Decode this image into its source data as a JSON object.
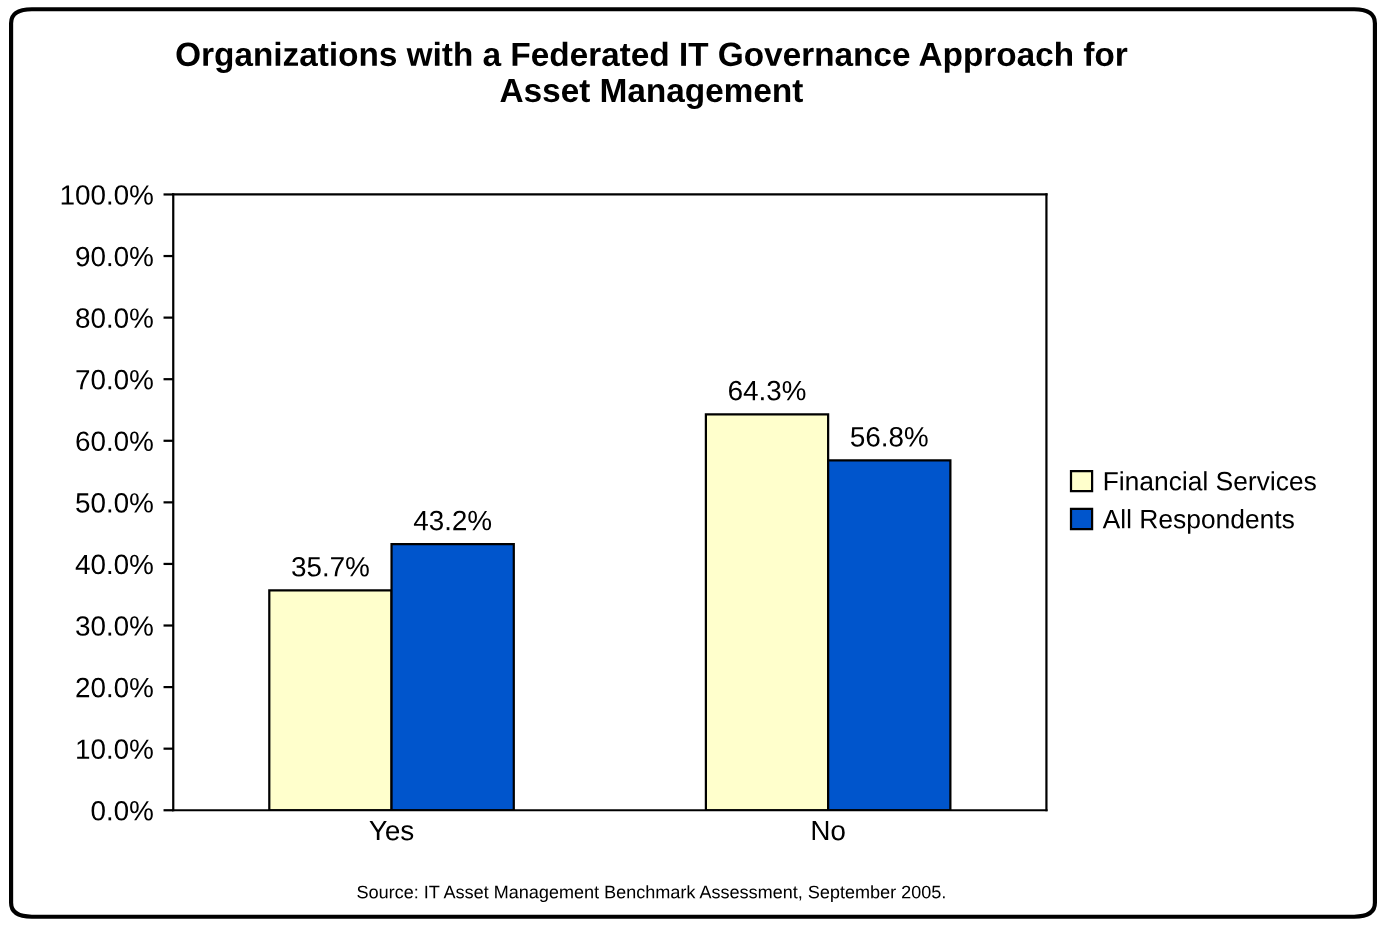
{
  "chart_data": {
    "type": "bar",
    "title": "Organizations with a Federated IT Governance Approach for\nAsset Management",
    "categories": [
      "Yes",
      "No"
    ],
    "series": [
      {
        "name": "Financial Services",
        "color": "#ffffcc",
        "values": [
          35.7,
          64.3
        ],
        "value_labels": [
          "35.7%",
          "64.3%"
        ]
      },
      {
        "name": "All Respondents",
        "color": "#0055cc",
        "values": [
          43.2,
          56.8
        ],
        "value_labels": [
          "43.2%",
          "56.8%"
        ]
      }
    ],
    "ylim": [
      0,
      100
    ],
    "yticks": [
      {
        "value": 0,
        "label": "0.0%"
      },
      {
        "value": 10,
        "label": "10.0%"
      },
      {
        "value": 20,
        "label": "20.0%"
      },
      {
        "value": 30,
        "label": "30.0%"
      },
      {
        "value": 40,
        "label": "40.0%"
      },
      {
        "value": 50,
        "label": "50.0%"
      },
      {
        "value": 60,
        "label": "60.0%"
      },
      {
        "value": 70,
        "label": "70.0%"
      },
      {
        "value": 80,
        "label": "80.0%"
      },
      {
        "value": 90,
        "label": "90.0%"
      },
      {
        "value": 100,
        "label": "100.0%"
      }
    ],
    "grid": false,
    "legend": "right",
    "annotations": [
      "Source: IT Asset Management Benchmark Assessment, September 2005."
    ]
  }
}
